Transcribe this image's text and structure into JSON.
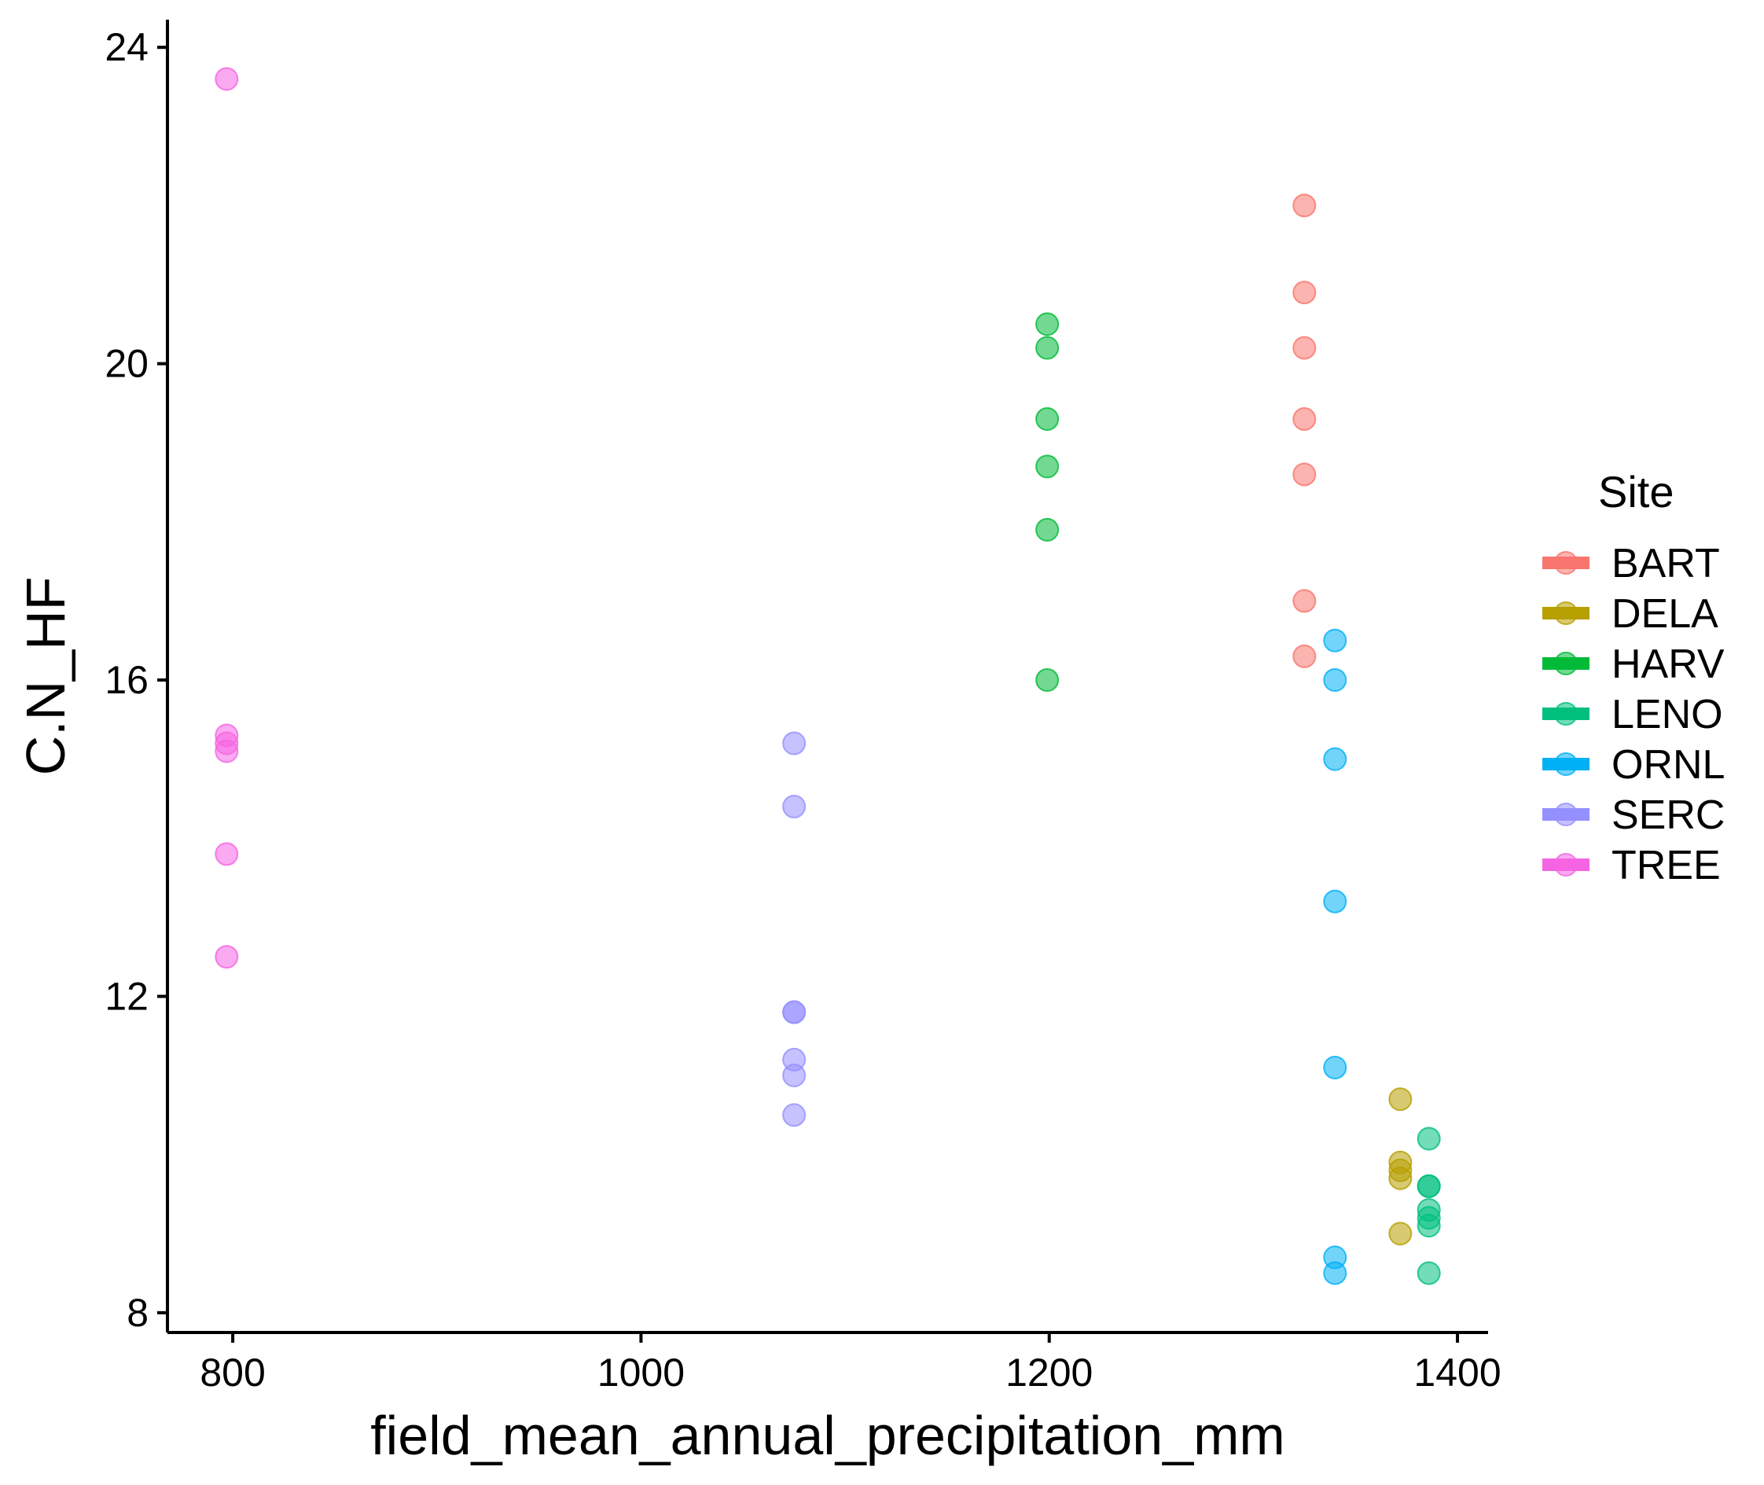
{
  "chart_data": {
    "type": "scatter",
    "title": "",
    "xlabel": "field_mean_annual_precipitation_mm",
    "ylabel": "C.N_HF",
    "xlim": [
      768,
      1415
    ],
    "ylim": [
      7.75,
      24.35
    ],
    "xticks": [
      800,
      1000,
      1200,
      1400
    ],
    "yticks": [
      8,
      12,
      16,
      20,
      24
    ],
    "grid": false,
    "legend": {
      "title": "Site",
      "placement": "right"
    },
    "series": [
      {
        "name": "BART",
        "color": "#F8766D",
        "points": [
          [
            1325,
            22.0
          ],
          [
            1325,
            20.9
          ],
          [
            1325,
            20.2
          ],
          [
            1325,
            19.3
          ],
          [
            1325,
            18.6
          ],
          [
            1325,
            17.0
          ],
          [
            1325,
            16.3
          ]
        ]
      },
      {
        "name": "DELA",
        "color": "#B79F00",
        "points": [
          [
            1372,
            10.7
          ],
          [
            1372,
            9.9
          ],
          [
            1372,
            9.8
          ],
          [
            1372,
            9.7
          ],
          [
            1372,
            9.0
          ]
        ]
      },
      {
        "name": "HARV",
        "color": "#00BA38",
        "points": [
          [
            1199,
            20.5
          ],
          [
            1199,
            20.2
          ],
          [
            1199,
            19.3
          ],
          [
            1199,
            18.7
          ],
          [
            1199,
            17.9
          ],
          [
            1199,
            16.0
          ]
        ]
      },
      {
        "name": "LENO",
        "color": "#00BF7D",
        "points": [
          [
            1386,
            10.2
          ],
          [
            1386,
            9.6
          ],
          [
            1386,
            9.6
          ],
          [
            1386,
            9.3
          ],
          [
            1386,
            9.2
          ],
          [
            1386,
            9.1
          ],
          [
            1386,
            8.5
          ]
        ]
      },
      {
        "name": "ORNL",
        "color": "#00B0F6",
        "points": [
          [
            1340,
            16.5
          ],
          [
            1340,
            16.0
          ],
          [
            1340,
            15.0
          ],
          [
            1340,
            13.2
          ],
          [
            1340,
            11.1
          ],
          [
            1340,
            8.7
          ],
          [
            1340,
            8.5
          ]
        ]
      },
      {
        "name": "SERC",
        "color": "#9590FF",
        "points": [
          [
            1075,
            15.2
          ],
          [
            1075,
            14.4
          ],
          [
            1075,
            11.8
          ],
          [
            1075,
            11.8
          ],
          [
            1075,
            11.2
          ],
          [
            1075,
            11.0
          ],
          [
            1075,
            10.5
          ]
        ]
      },
      {
        "name": "TREE",
        "color": "#F564E3",
        "points": [
          [
            797,
            23.6
          ],
          [
            797,
            15.3
          ],
          [
            797,
            15.2
          ],
          [
            797,
            15.1
          ],
          [
            797,
            13.8
          ],
          [
            797,
            12.5
          ]
        ]
      }
    ]
  }
}
